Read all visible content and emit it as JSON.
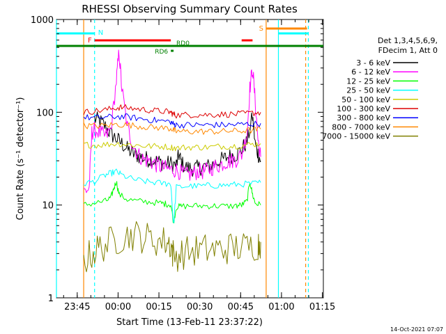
{
  "chart_data": {
    "type": "line",
    "title": "RHESSI Observing Summary Count Rates",
    "xlabel": "Start Time (13-Feb-11 23:37:22)",
    "ylabel": "Count Rate (s⁻¹ detector⁻¹)",
    "y_scale": "log",
    "ylim": [
      1,
      1000
    ],
    "y_ticks": [
      {
        "v": 1,
        "label": "1"
      },
      {
        "v": 10,
        "label": "10"
      },
      {
        "v": 100,
        "label": "100"
      },
      {
        "v": 1000,
        "label": "1000"
      }
    ],
    "x_unit": "minutes after 23:37:22",
    "xlim": [
      0,
      98
    ],
    "x_ticks": [
      {
        "t": 7.63,
        "label": "23:45"
      },
      {
        "t": 22.63,
        "label": "00:00"
      },
      {
        "t": 37.63,
        "label": "00:15"
      },
      {
        "t": 52.63,
        "label": "00:30"
      },
      {
        "t": 67.63,
        "label": "00:45"
      },
      {
        "t": 82.63,
        "label": "01:00"
      },
      {
        "t": 97.63,
        "label": "01:15"
      }
    ],
    "legend": {
      "position": "right",
      "header": [
        "Det 1,3,4,5,6,9,",
        "FDecim 1, Att 0"
      ]
    },
    "series": [
      {
        "name": "3 - 6 keV",
        "color": "#000000",
        "points": [
          [
            10,
            null
          ],
          [
            14,
            85
          ],
          [
            16,
            80
          ],
          [
            18,
            70
          ],
          [
            20,
            58
          ],
          [
            22,
            52
          ],
          [
            24,
            46
          ],
          [
            26,
            40
          ],
          [
            28,
            36
          ],
          [
            30,
            34
          ],
          [
            32,
            32
          ],
          [
            34,
            31
          ],
          [
            36,
            30
          ],
          [
            38,
            29
          ],
          [
            40,
            28
          ],
          [
            42,
            28
          ],
          [
            44,
            27
          ],
          [
            45,
            35
          ],
          [
            46,
            28
          ],
          [
            48,
            25
          ],
          [
            50,
            25
          ],
          [
            52,
            25
          ],
          [
            54,
            26
          ],
          [
            56,
            26
          ],
          [
            58,
            28
          ],
          [
            60,
            30
          ],
          [
            62,
            32
          ],
          [
            64,
            34
          ],
          [
            66,
            35
          ],
          [
            68,
            40
          ],
          [
            70,
            48
          ],
          [
            72,
            90
          ],
          [
            73,
            45
          ],
          [
            74,
            36
          ],
          [
            75,
            30
          ]
        ]
      },
      {
        "name": "6 - 12 keV",
        "color": "#ff00ff",
        "points": [
          [
            10,
            14
          ],
          [
            12,
            15
          ],
          [
            13,
            60
          ],
          [
            14,
            65
          ],
          [
            16,
            60
          ],
          [
            18,
            55
          ],
          [
            20,
            65
          ],
          [
            22,
            220
          ],
          [
            23,
            450
          ],
          [
            24,
            180
          ],
          [
            26,
            70
          ],
          [
            28,
            45
          ],
          [
            30,
            35
          ],
          [
            32,
            31
          ],
          [
            34,
            30
          ],
          [
            36,
            28
          ],
          [
            38,
            26
          ],
          [
            40,
            25
          ],
          [
            42,
            24
          ],
          [
            44,
            24
          ],
          [
            46,
            22
          ],
          [
            48,
            21
          ],
          [
            50,
            22
          ],
          [
            52,
            23
          ],
          [
            54,
            23
          ],
          [
            56,
            24
          ],
          [
            58,
            26
          ],
          [
            60,
            27
          ],
          [
            62,
            29
          ],
          [
            64,
            30
          ],
          [
            66,
            31
          ],
          [
            68,
            35
          ],
          [
            70,
            60
          ],
          [
            71,
            180
          ],
          [
            72,
            300
          ],
          [
            73,
            130
          ],
          [
            74,
            50
          ],
          [
            75,
            33
          ]
        ]
      },
      {
        "name": "12 - 25 keV",
        "color": "#00ff00",
        "points": [
          [
            10,
            10
          ],
          [
            14,
            10.5
          ],
          [
            18,
            11
          ],
          [
            20,
            12
          ],
          [
            21,
            15
          ],
          [
            22,
            18
          ],
          [
            23,
            13
          ],
          [
            26,
            11.5
          ],
          [
            30,
            11
          ],
          [
            34,
            10.8
          ],
          [
            38,
            10.5
          ],
          [
            40,
            10.3
          ],
          [
            42,
            10.1
          ],
          [
            43,
            6.5
          ],
          [
            44,
            9.5
          ],
          [
            46,
            9.7
          ],
          [
            50,
            9.8
          ],
          [
            54,
            9.8
          ],
          [
            58,
            9.8
          ],
          [
            62,
            9.7
          ],
          [
            66,
            9.8
          ],
          [
            68,
            10
          ],
          [
            70,
            11
          ],
          [
            71,
            18
          ],
          [
            72,
            13
          ],
          [
            73,
            10.5
          ],
          [
            75,
            10
          ]
        ]
      },
      {
        "name": "25 - 50 keV",
        "color": "#00ffff",
        "points": [
          [
            10,
            17
          ],
          [
            14,
            18
          ],
          [
            18,
            21
          ],
          [
            20,
            22
          ],
          [
            22,
            23
          ],
          [
            24,
            21
          ],
          [
            28,
            19
          ],
          [
            32,
            18
          ],
          [
            36,
            17.5
          ],
          [
            40,
            17
          ],
          [
            42,
            17
          ],
          [
            43,
            6
          ],
          [
            44,
            15.5
          ],
          [
            48,
            16
          ],
          [
            52,
            16
          ],
          [
            56,
            16.2
          ],
          [
            60,
            16.3
          ],
          [
            64,
            16.5
          ],
          [
            68,
            16.8
          ],
          [
            72,
            17
          ],
          [
            75,
            17.5
          ]
        ]
      },
      {
        "name": "50 - 100 keV",
        "color": "#cccc00",
        "points": [
          [
            10,
            45
          ],
          [
            14,
            44
          ],
          [
            18,
            45
          ],
          [
            22,
            46
          ],
          [
            26,
            45
          ],
          [
            30,
            44
          ],
          [
            34,
            43
          ],
          [
            38,
            43
          ],
          [
            42,
            42
          ],
          [
            44,
            41
          ],
          [
            48,
            42
          ],
          [
            52,
            42
          ],
          [
            56,
            42
          ],
          [
            60,
            43
          ],
          [
            64,
            43
          ],
          [
            68,
            44
          ],
          [
            72,
            45
          ],
          [
            75,
            46
          ]
        ]
      },
      {
        "name": "100 - 300 keV",
        "color": "#dd0000",
        "points": [
          [
            10,
            100
          ],
          [
            14,
            103
          ],
          [
            18,
            106
          ],
          [
            22,
            112
          ],
          [
            24,
            113
          ],
          [
            28,
            110
          ],
          [
            32,
            107
          ],
          [
            36,
            104
          ],
          [
            40,
            102
          ],
          [
            42,
            100
          ],
          [
            43,
            95
          ],
          [
            44,
            93
          ],
          [
            48,
            94
          ],
          [
            52,
            94
          ],
          [
            56,
            94
          ],
          [
            60,
            95
          ],
          [
            64,
            95
          ],
          [
            68,
            96
          ],
          [
            72,
            98
          ],
          [
            75,
            100
          ]
        ]
      },
      {
        "name": "300 - 800 keV",
        "color": "#0000ff",
        "points": [
          [
            10,
            88
          ],
          [
            14,
            87
          ],
          [
            18,
            88
          ],
          [
            22,
            90
          ],
          [
            26,
            89
          ],
          [
            30,
            86
          ],
          [
            34,
            83
          ],
          [
            38,
            81
          ],
          [
            42,
            79
          ],
          [
            43,
            74
          ],
          [
            44,
            73
          ],
          [
            48,
            73
          ],
          [
            52,
            73
          ],
          [
            56,
            73
          ],
          [
            60,
            73
          ],
          [
            64,
            73
          ],
          [
            68,
            74
          ],
          [
            72,
            75
          ],
          [
            75,
            76
          ]
        ]
      },
      {
        "name": "800 - 7000 keV",
        "color": "#ff8800",
        "points": [
          [
            10,
            72
          ],
          [
            14,
            71
          ],
          [
            18,
            72
          ],
          [
            22,
            74
          ],
          [
            26,
            73
          ],
          [
            30,
            71
          ],
          [
            34,
            69
          ],
          [
            38,
            68
          ],
          [
            42,
            67
          ],
          [
            43,
            64
          ],
          [
            44,
            62
          ],
          [
            48,
            62
          ],
          [
            52,
            62
          ],
          [
            56,
            62
          ],
          [
            60,
            62
          ],
          [
            64,
            63
          ],
          [
            68,
            63
          ],
          [
            72,
            64
          ],
          [
            75,
            66
          ]
        ]
      },
      {
        "name": "7000 - 15000 keV",
        "color": "#808000",
        "points": [
          [
            10,
            2.5
          ],
          [
            13,
            3
          ],
          [
            16,
            3.5
          ],
          [
            20,
            4
          ],
          [
            24,
            4.5
          ],
          [
            28,
            4.8
          ],
          [
            32,
            4.5
          ],
          [
            36,
            4.2
          ],
          [
            40,
            4
          ],
          [
            42,
            3.8
          ],
          [
            43,
            2.8
          ],
          [
            46,
            3
          ],
          [
            50,
            3.2
          ],
          [
            54,
            3.3
          ],
          [
            58,
            3.3
          ],
          [
            62,
            3.4
          ],
          [
            66,
            3.5
          ],
          [
            70,
            3.5
          ],
          [
            74,
            3.8
          ],
          [
            75,
            4
          ]
        ]
      }
    ],
    "flags": [
      {
        "label": "N",
        "color": "#00ffff",
        "segments": [
          [
            0,
            14
          ]
        ]
      },
      {
        "label": "N",
        "color": "#00ffff",
        "label_hidden": true,
        "segments": [
          [
            81.5,
            92.5
          ]
        ]
      },
      {
        "label": "F",
        "color": "#ff0000",
        "segments": [
          [
            14,
            42
          ],
          [
            68,
            72
          ]
        ]
      },
      {
        "label": "S",
        "color": "#ff8800",
        "segments": [
          [
            77,
            92
          ]
        ]
      },
      {
        "label": "RD6",
        "color": "#008000",
        "segments": [
          [
            42,
            43
          ]
        ]
      },
      {
        "label": "RD0",
        "color": "#008000",
        "segments": [
          [
            0,
            98
          ]
        ]
      }
    ],
    "vertical_markers": [
      {
        "t": 0,
        "color": "#00ffff",
        "style": "solid"
      },
      {
        "t": 10,
        "color": "#ff8800",
        "style": "solid"
      },
      {
        "t": 14,
        "color": "#00ffff",
        "style": "dashed"
      },
      {
        "t": 77,
        "color": "#ff8800",
        "style": "solid"
      },
      {
        "t": 81.5,
        "color": "#00ffff",
        "style": "solid"
      },
      {
        "t": 91.5,
        "color": "#ff8800",
        "style": "dashed"
      },
      {
        "t": 92.5,
        "color": "#00ffff",
        "style": "dashed"
      }
    ]
  },
  "footer": {
    "timestamp": "14-Oct-2021 07:07"
  }
}
